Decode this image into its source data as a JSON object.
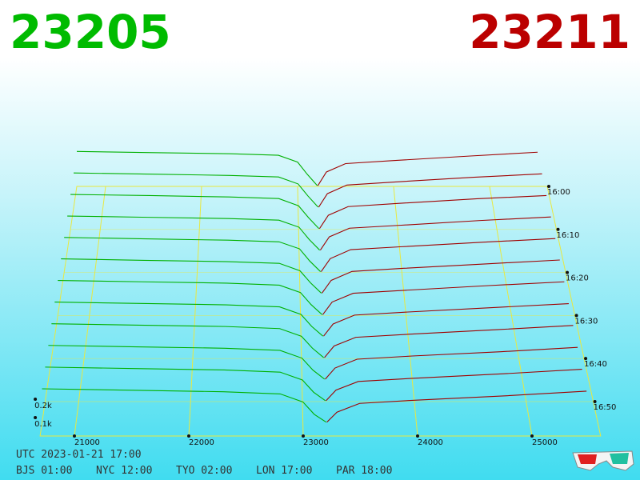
{
  "chart_data": {
    "type": "depth3d",
    "best_bid": 23205,
    "best_ask": 23211,
    "bid_color": "#00b000",
    "ask_color": "#a00000",
    "grid_color": "#e8e840",
    "xlim": [
      20700,
      25600
    ],
    "xticks": [
      21000,
      22000,
      23000,
      24000,
      25000
    ],
    "zlim": [
      960,
      1018
    ],
    "zticks": [
      {
        "value": 960,
        "label": "16:00"
      },
      {
        "value": 970,
        "label": "16:10"
      },
      {
        "value": 980,
        "label": "16:20"
      },
      {
        "value": 990,
        "label": "16:30"
      },
      {
        "value": 1000,
        "label": "16:40"
      },
      {
        "value": 1010,
        "label": "16:50"
      }
    ],
    "depth_ticks": [
      {
        "value": 100,
        "label": "0.1k"
      },
      {
        "value": 200,
        "label": "0.2k"
      }
    ],
    "bid_prices": [
      20700,
      21500,
      22300,
      22800,
      23000,
      23100,
      23205
    ],
    "ask_prices": [
      23211,
      23300,
      23500,
      24000,
      24800,
      25500
    ],
    "snapshots": [
      {
        "time": 960,
        "bids": [
          230,
          222,
          215,
          205,
          160,
          80,
          5
        ],
        "asks": [
          5,
          95,
          150,
          170,
          200,
          225
        ]
      },
      {
        "time": 965,
        "bids": [
          226,
          218,
          210,
          200,
          155,
          78,
          5
        ],
        "asks": [
          5,
          92,
          148,
          168,
          198,
          220
        ]
      },
      {
        "time": 970,
        "bids": [
          222,
          215,
          206,
          196,
          150,
          75,
          5
        ],
        "asks": [
          5,
          90,
          145,
          165,
          195,
          215
        ]
      },
      {
        "time": 975,
        "bids": [
          218,
          210,
          202,
          192,
          148,
          72,
          5
        ],
        "asks": [
          5,
          88,
          142,
          160,
          190,
          212
        ]
      },
      {
        "time": 980,
        "bids": [
          215,
          206,
          198,
          188,
          145,
          70,
          5
        ],
        "asks": [
          5,
          85,
          140,
          158,
          186,
          208
        ]
      },
      {
        "time": 985,
        "bids": [
          212,
          203,
          195,
          185,
          140,
          68,
          5
        ],
        "asks": [
          5,
          82,
          136,
          155,
          182,
          205
        ]
      },
      {
        "time": 990,
        "bids": [
          208,
          200,
          192,
          180,
          136,
          65,
          5
        ],
        "asks": [
          5,
          80,
          132,
          150,
          178,
          200
        ]
      },
      {
        "time": 995,
        "bids": [
          204,
          196,
          188,
          176,
          132,
          62,
          5
        ],
        "asks": [
          5,
          76,
          128,
          146,
          172,
          195
        ]
      },
      {
        "time": 1000,
        "bids": [
          200,
          192,
          184,
          172,
          128,
          60,
          5
        ],
        "asks": [
          5,
          72,
          122,
          140,
          166,
          190
        ]
      },
      {
        "time": 1005,
        "bids": [
          196,
          188,
          180,
          168,
          124,
          56,
          5
        ],
        "asks": [
          5,
          68,
          118,
          136,
          160,
          185
        ]
      },
      {
        "time": 1010,
        "bids": [
          192,
          184,
          176,
          164,
          120,
          52,
          5
        ],
        "asks": [
          5,
          64,
          112,
          130,
          155,
          180
        ]
      },
      {
        "time": 1015,
        "bids": [
          188,
          180,
          172,
          160,
          116,
          48,
          5
        ],
        "asks": [
          5,
          60,
          108,
          126,
          150,
          175
        ]
      }
    ],
    "clock": {
      "utc": "UTC 2023-01-21 17:00",
      "zones": [
        "BJS 01:00",
        "NYC 12:00",
        "TYO 02:00",
        "LON 17:00",
        "PAR 18:00"
      ]
    }
  }
}
